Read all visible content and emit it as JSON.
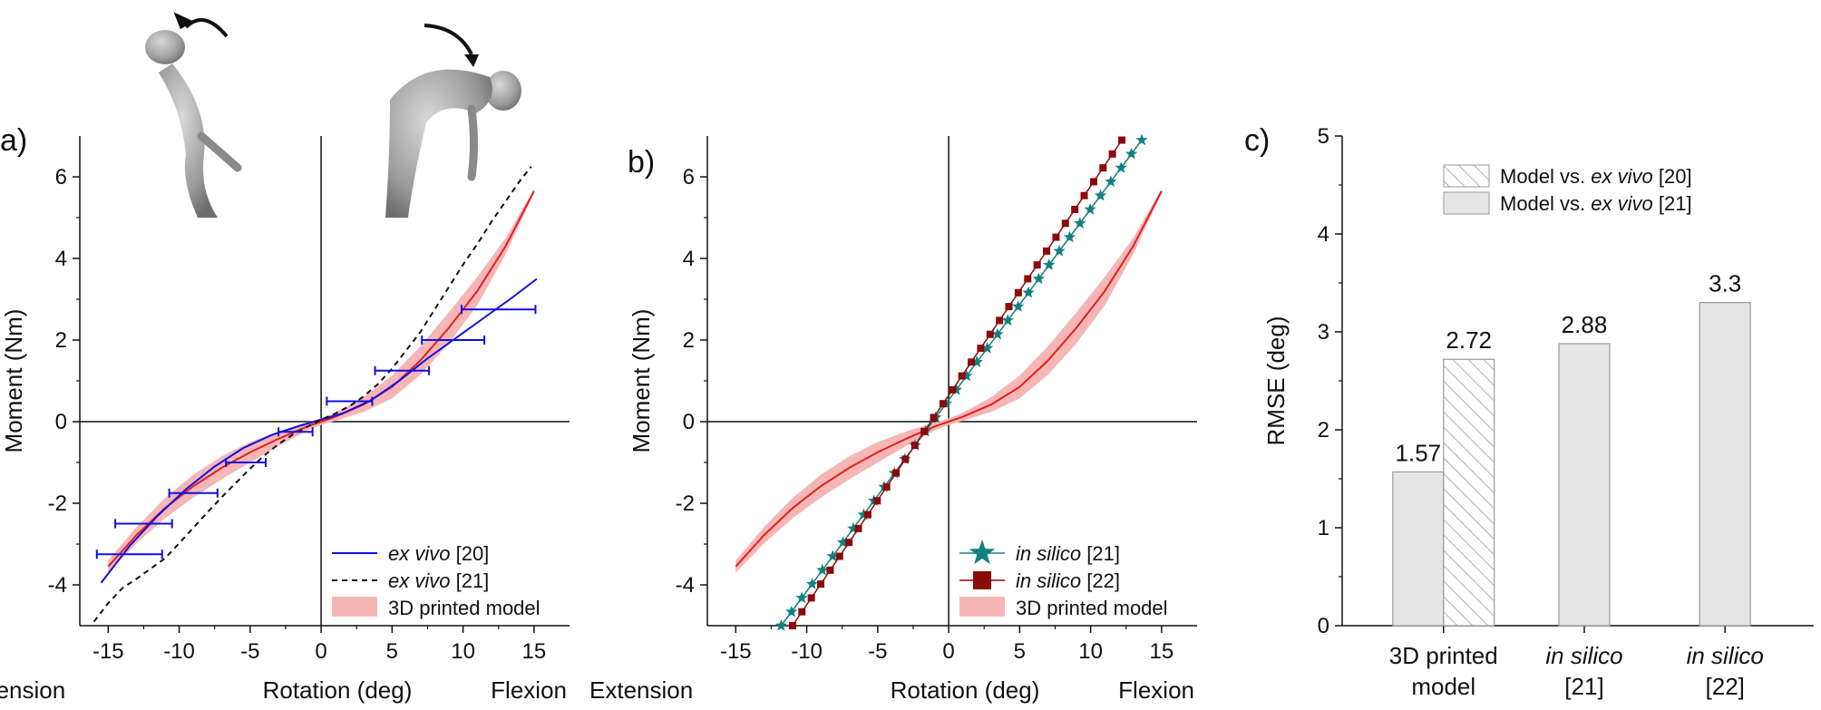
{
  "chart_data": [
    {
      "type": "line",
      "panel_label": "a)",
      "xlabel": "Rotation (deg)",
      "xlabel_left": "Extension",
      "xlabel_right": "Flexion",
      "ylabel": "Moment (Nm)",
      "xlim": [
        -17,
        17.5
      ],
      "ylim": [
        -5,
        7
      ],
      "xticks": [
        -15,
        -10,
        -5,
        0,
        5,
        10,
        15
      ],
      "yticks": [
        -4,
        -2,
        0,
        2,
        4,
        6
      ],
      "xtick_labels": [
        "-15",
        "-10",
        "-5",
        "0",
        "5",
        "10",
        "15"
      ],
      "ytick_labels": [
        "-4",
        "-2",
        "0",
        "2",
        "4",
        "6"
      ],
      "series": [
        {
          "name": "3D printed model",
          "kind": "band",
          "color": "#e02020",
          "band_color": "#f7b6b6",
          "x": [
            -15,
            -13,
            -11,
            -9,
            -7,
            -5,
            -3,
            -1,
            0,
            1,
            3,
            5,
            7,
            9,
            11,
            13,
            15
          ],
          "y": [
            -3.55,
            -2.78,
            -2.12,
            -1.58,
            -1.13,
            -0.75,
            -0.42,
            -0.12,
            0.0,
            0.12,
            0.42,
            0.85,
            1.5,
            2.3,
            3.2,
            4.3,
            5.65
          ],
          "band": [
            0.15,
            0.2,
            0.25,
            0.28,
            0.28,
            0.25,
            0.18,
            0.1,
            0.08,
            0.1,
            0.18,
            0.28,
            0.35,
            0.38,
            0.35,
            0.2,
            0.05
          ]
        },
        {
          "name": "ex vivo [20]",
          "kind": "line",
          "color": "#1010e0",
          "x": [
            -15.5,
            -13.5,
            -11.5,
            -9.5,
            -7.5,
            -5.5,
            -3.5,
            -1.5,
            0,
            1.5,
            3.5,
            5.5,
            7.5,
            9.5,
            11.5,
            13.5,
            15.2
          ],
          "y": [
            -3.95,
            -3.05,
            -2.3,
            -1.65,
            -1.1,
            -0.65,
            -0.33,
            -0.1,
            0.05,
            0.2,
            0.52,
            1.0,
            1.55,
            2.05,
            2.55,
            3.05,
            3.5
          ]
        },
        {
          "name": "ex vivo [21]",
          "kind": "dashed",
          "color": "#111111",
          "x": [
            -16,
            -15,
            -14,
            -13,
            -12,
            -11,
            -10,
            -9,
            -8,
            -7,
            -6,
            -5,
            -4,
            -3,
            -2,
            -1,
            0,
            1,
            2,
            3,
            4,
            5,
            6,
            7,
            8,
            9,
            10,
            11,
            12,
            13,
            14,
            14.8
          ],
          "y": [
            -4.9,
            -4.45,
            -4.08,
            -3.85,
            -3.6,
            -3.35,
            -2.98,
            -2.6,
            -2.22,
            -1.85,
            -1.5,
            -1.15,
            -0.83,
            -0.55,
            -0.32,
            -0.13,
            0.05,
            0.2,
            0.38,
            0.62,
            0.92,
            1.3,
            1.75,
            2.2,
            2.75,
            3.3,
            3.85,
            4.35,
            4.9,
            5.4,
            5.9,
            6.25
          ]
        },
        {
          "name": "ex vivo [20] data",
          "kind": "errorbars",
          "color": "#1010e0",
          "points": [
            {
              "x": -13.5,
              "y": -3.25,
              "xerr": 2.3
            },
            {
              "x": -12.5,
              "y": -2.5,
              "xerr": 2.0
            },
            {
              "x": -9.0,
              "y": -1.75,
              "xerr": 1.7
            },
            {
              "x": -5.3,
              "y": -1.0,
              "xerr": 1.4
            },
            {
              "x": -1.8,
              "y": -0.25,
              "xerr": 1.2
            },
            {
              "x": 2.0,
              "y": 0.5,
              "xerr": 1.6
            },
            {
              "x": 5.7,
              "y": 1.25,
              "xerr": 1.9
            },
            {
              "x": 9.3,
              "y": 2.0,
              "xerr": 2.2
            },
            {
              "x": 12.5,
              "y": 2.75,
              "xerr": 2.6
            }
          ]
        }
      ],
      "legend": [
        {
          "label": "ex vivo",
          "ref": "[20]",
          "italic": true,
          "style": "line",
          "color": "#1010e0"
        },
        {
          "label": "ex vivo",
          "ref": "[21]",
          "italic": true,
          "style": "dashed",
          "color": "#111111"
        },
        {
          "label": "3D printed model",
          "ref": "",
          "italic": false,
          "style": "band",
          "color": "#f7b6b6"
        }
      ],
      "legend_position": "bottom-right"
    },
    {
      "type": "line",
      "panel_label": "b)",
      "xlabel": "Rotation (deg)",
      "xlabel_left": "Extension",
      "xlabel_right": "Flexion",
      "ylabel": "Moment (Nm)",
      "xlim": [
        -17,
        17.5
      ],
      "ylim": [
        -5,
        7
      ],
      "xticks": [
        -15,
        -10,
        -5,
        0,
        5,
        10,
        15
      ],
      "yticks": [
        -4,
        -2,
        0,
        2,
        4,
        6
      ],
      "xtick_labels": [
        "-15",
        "-10",
        "-5",
        "0",
        "5",
        "10",
        "15"
      ],
      "ytick_labels": [
        "-4",
        "-2",
        "0",
        "2",
        "4",
        "6"
      ],
      "series": [
        {
          "name": "3D printed model",
          "kind": "band",
          "color": "#e02020",
          "band_color": "#f7b6b6",
          "x": [
            -15,
            -13,
            -11,
            -9,
            -7,
            -5,
            -3,
            -1,
            0,
            1,
            3,
            5,
            7,
            9,
            11,
            13,
            15
          ],
          "y": [
            -3.55,
            -2.78,
            -2.12,
            -1.58,
            -1.13,
            -0.75,
            -0.42,
            -0.12,
            0.0,
            0.12,
            0.42,
            0.85,
            1.5,
            2.3,
            3.2,
            4.3,
            5.65
          ],
          "band": [
            0.15,
            0.2,
            0.25,
            0.28,
            0.28,
            0.25,
            0.18,
            0.1,
            0.08,
            0.1,
            0.18,
            0.28,
            0.35,
            0.38,
            0.35,
            0.2,
            0.05
          ]
        },
        {
          "name": "in silico [21]",
          "kind": "stars",
          "color": "#138080",
          "x0": -11.8,
          "y0": -5.0,
          "x1": 13.6,
          "y1": 6.9,
          "count": 36
        },
        {
          "name": "in silico [22]",
          "kind": "squares",
          "color": "#8b0a0a",
          "x0": -11.0,
          "y0": -5.0,
          "x1": 12.2,
          "y1": 6.9,
          "count": 36
        }
      ],
      "legend": [
        {
          "label": "in silico",
          "ref": "[21]",
          "italic": true,
          "style": "star",
          "color": "#138080"
        },
        {
          "label": "in silico",
          "ref": "[22]",
          "italic": true,
          "style": "square",
          "color": "#8b0a0a"
        },
        {
          "label": "3D printed model",
          "ref": "",
          "italic": false,
          "style": "band",
          "color": "#f7b6b6"
        }
      ],
      "legend_position": "bottom-right"
    },
    {
      "type": "bar",
      "panel_label": "c)",
      "ylabel": "RMSE (deg)",
      "ylim": [
        0,
        5
      ],
      "yticks": [
        0,
        1,
        2,
        3,
        4,
        5
      ],
      "ytick_labels": [
        "0",
        "1",
        "2",
        "3",
        "4",
        "5"
      ],
      "categories": [
        {
          "line1": "3D printed",
          "line2": "model",
          "italic": false
        },
        {
          "line1": "in silico",
          "line2": "[21]",
          "italic": true
        },
        {
          "line1": "in silico",
          "line2": "[22]",
          "italic": true
        }
      ],
      "bars": [
        {
          "category": 0,
          "series": 1,
          "value": 1.57,
          "label": "1.57"
        },
        {
          "category": 0,
          "series": 0,
          "value": 2.72,
          "label": "2.72"
        },
        {
          "category": 1,
          "series": 1,
          "value": 2.88,
          "label": "2.88"
        },
        {
          "category": 2,
          "series": 1,
          "value": 3.3,
          "label": "3.3"
        }
      ],
      "legend": [
        {
          "prefix": "Model vs. ",
          "italic_part": "ex vivo",
          "ref": " [20]",
          "style": "hatched"
        },
        {
          "prefix": "Model vs. ",
          "italic_part": "ex vivo",
          "ref": " [21]",
          "style": "solid"
        }
      ],
      "legend_position": "top-center",
      "bar_fill": "#e6e6e6",
      "bar_edge": "#9a9a9a"
    }
  ]
}
